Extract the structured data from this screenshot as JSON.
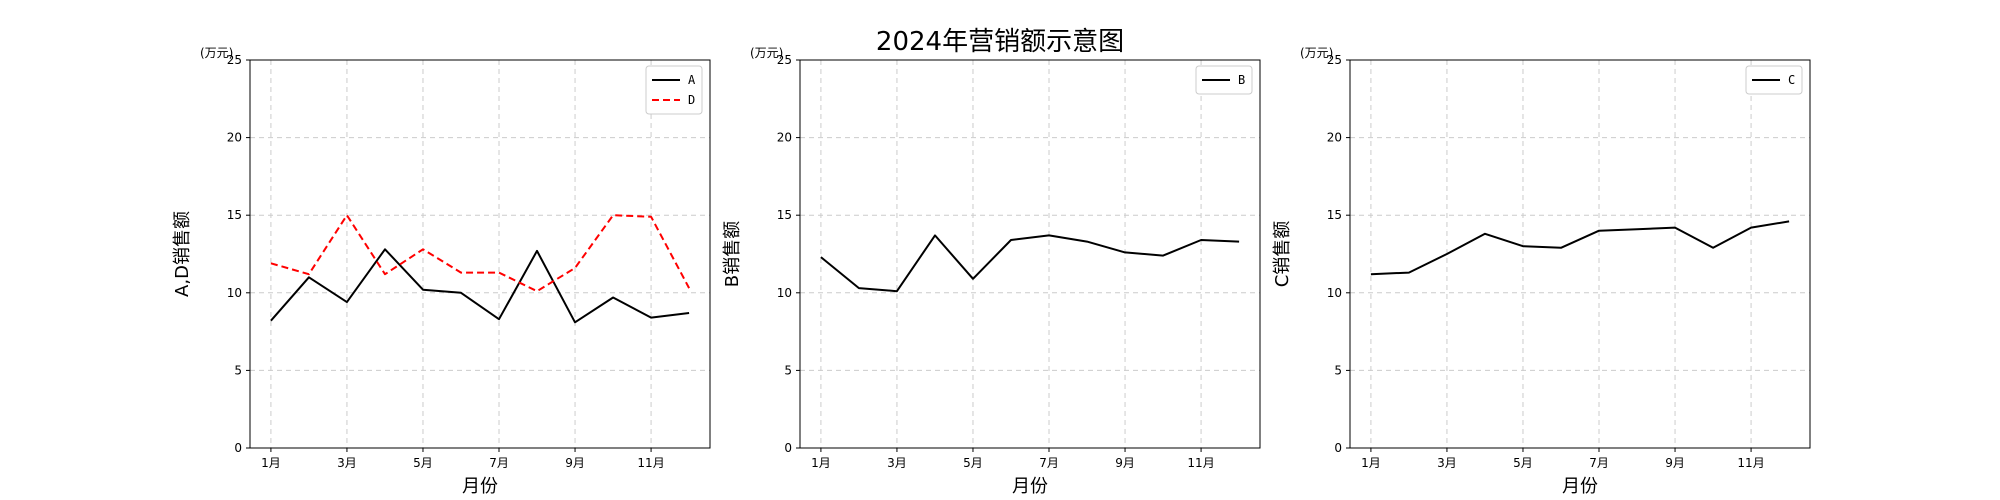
{
  "chart_data": {
    "type": "line",
    "title": "2024年营销额示意图",
    "grid": true,
    "legend_position": "top-right",
    "panels": [
      {
        "unit_label": "(万元)",
        "xlabel": "月份",
        "ylabel": "A,D销售额",
        "ylim": [
          0,
          25
        ],
        "yticks": [
          "0",
          "5",
          "10",
          "15",
          "20",
          "25"
        ],
        "x": [
          1,
          2,
          3,
          4,
          5,
          6,
          7,
          8,
          9,
          10,
          11,
          12
        ],
        "xticks": [
          "1月",
          "3月",
          "5月",
          "7月",
          "9月",
          "11月"
        ],
        "series": [
          {
            "name": "A",
            "color": "#000000",
            "style": "solid",
            "values": [
              8.2,
              11.0,
              9.4,
              12.8,
              10.2,
              10.0,
              8.3,
              12.7,
              8.1,
              9.7,
              8.4,
              8.7
            ]
          },
          {
            "name": "D",
            "color": "#ff0000",
            "style": "dashed",
            "values": [
              11.9,
              11.2,
              15.0,
              11.2,
              12.8,
              11.3,
              11.3,
              10.1,
              11.6,
              15.0,
              14.9,
              10.3
            ]
          }
        ]
      },
      {
        "unit_label": "(万元)",
        "xlabel": "月份",
        "ylabel": "B销售额",
        "ylim": [
          0,
          25
        ],
        "yticks": [
          "0",
          "5",
          "10",
          "15",
          "20",
          "25"
        ],
        "x": [
          1,
          2,
          3,
          4,
          5,
          6,
          7,
          8,
          9,
          10,
          11,
          12
        ],
        "xticks": [
          "1月",
          "3月",
          "5月",
          "7月",
          "9月",
          "11月"
        ],
        "series": [
          {
            "name": "B",
            "color": "#000000",
            "style": "solid",
            "values": [
              12.3,
              10.3,
              10.1,
              13.7,
              10.9,
              13.4,
              13.7,
              13.3,
              12.6,
              12.4,
              13.4,
              13.3
            ]
          }
        ]
      },
      {
        "unit_label": "(万元)",
        "xlabel": "月份",
        "ylabel": "C销售额",
        "ylim": [
          0,
          25
        ],
        "yticks": [
          "0",
          "5",
          "10",
          "15",
          "20",
          "25"
        ],
        "x": [
          1,
          2,
          3,
          4,
          5,
          6,
          7,
          8,
          9,
          10,
          11,
          12
        ],
        "xticks": [
          "1月",
          "3月",
          "5月",
          "7月",
          "9月",
          "11月"
        ],
        "series": [
          {
            "name": "C",
            "color": "#000000",
            "style": "solid",
            "values": [
              11.2,
              11.3,
              12.5,
              13.8,
              13.0,
              12.9,
              14.0,
              14.1,
              14.2,
              12.9,
              14.2,
              14.6
            ]
          }
        ]
      }
    ]
  }
}
